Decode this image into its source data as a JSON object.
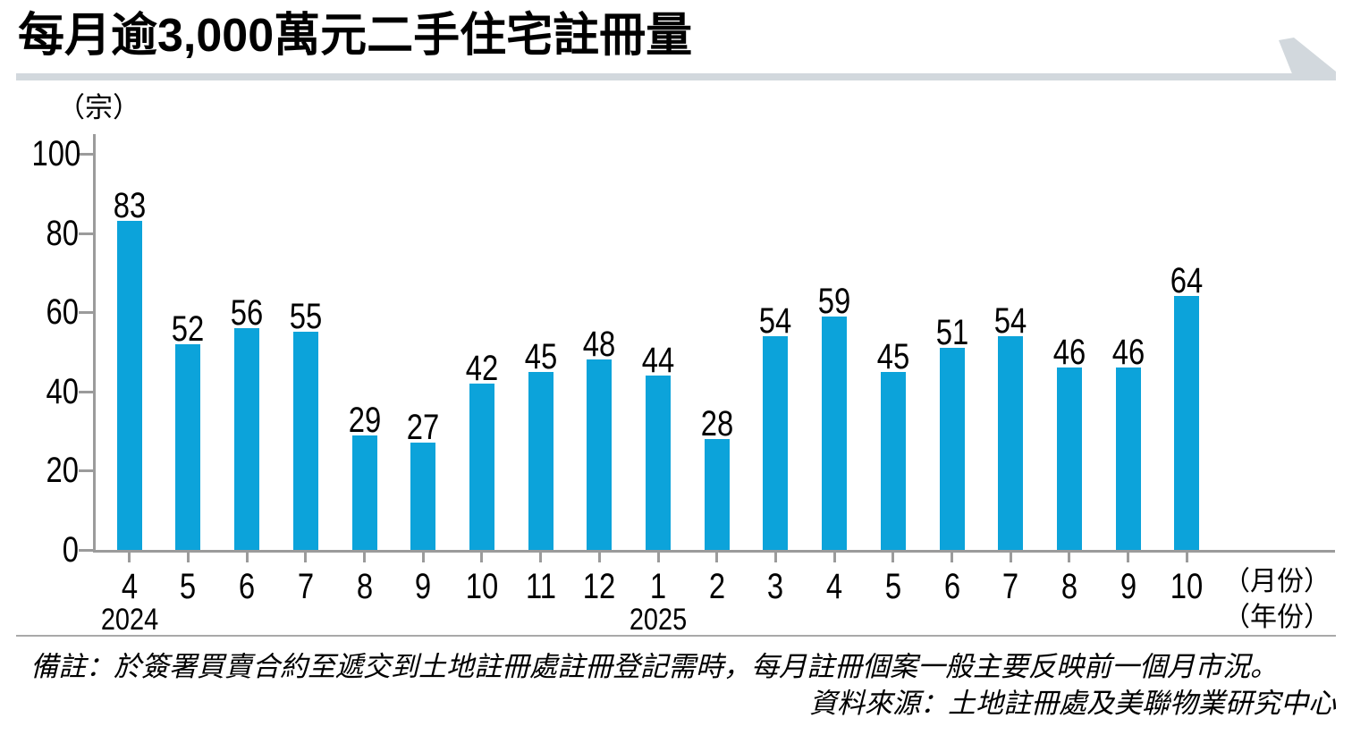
{
  "title": "每月逾3,000萬元二手住宅註冊量",
  "chart_data": {
    "type": "bar",
    "title": "每月逾3,000萬元二手住宅註冊量",
    "unit_label": "（宗）",
    "x_axis_suffix_month": "（月份）",
    "x_axis_suffix_year": "（年份）",
    "ylim": [
      0,
      100
    ],
    "yticks": [
      0,
      20,
      40,
      60,
      80,
      100
    ],
    "grid": false,
    "legend": "none",
    "categories": [
      "4",
      "5",
      "6",
      "7",
      "8",
      "9",
      "10",
      "11",
      "12",
      "1",
      "2",
      "3",
      "4",
      "5",
      "6",
      "7",
      "8",
      "9",
      "10"
    ],
    "values": [
      83,
      52,
      56,
      55,
      29,
      27,
      42,
      45,
      48,
      44,
      28,
      54,
      59,
      45,
      51,
      54,
      46,
      46,
      64
    ],
    "year_labels": [
      {
        "label": "2024",
        "month_index": 0
      },
      {
        "label": "2025",
        "month_index": 9
      }
    ],
    "bar_color": "#0ca3da",
    "axis_color": "#9b9b9b"
  },
  "footer": {
    "note": "備註：於簽署買賣合約至遞交到土地註冊處註冊登記需時，每月註冊個案一般主要反映前一個月市況。",
    "source": "資料來源：土地註冊處及美聯物業研究中心"
  },
  "decor": {
    "accent_color": "#d2d8dd"
  }
}
